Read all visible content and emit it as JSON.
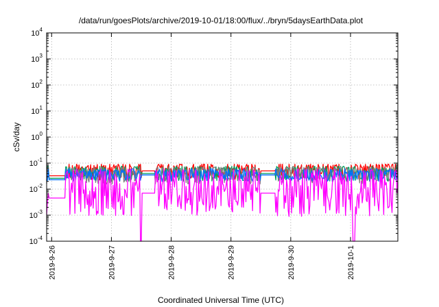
{
  "chart_data": {
    "type": "line",
    "title": "/data/run/goesPlots/archive/2019-10-01/18:00/flux/../bryn/5daysEarthData.plot",
    "xlabel": "Coordinated Universal Time (UTC)",
    "ylabel": "cSv/day",
    "yscale": "log",
    "ylim": [
      0.0001,
      10000
    ],
    "xlim": [
      "2019-09-25T22:00",
      "2019-10-01T19:00"
    ],
    "y_ticks": [
      {
        "value": 0.0001,
        "base": "10",
        "exp": "-4"
      },
      {
        "value": 0.001,
        "base": "10",
        "exp": "-3"
      },
      {
        "value": 0.01,
        "base": "10",
        "exp": "-2"
      },
      {
        "value": 0.1,
        "base": "10",
        "exp": "-1"
      },
      {
        "value": 1,
        "base": "10",
        "exp": "0"
      },
      {
        "value": 10,
        "base": "10",
        "exp": "1"
      },
      {
        "value": 100,
        "base": "10",
        "exp": "2"
      },
      {
        "value": 1000,
        "base": "10",
        "exp": "3"
      },
      {
        "value": 10000,
        "base": "10",
        "exp": "4"
      }
    ],
    "x_ticks": [
      "2019-9-26",
      "2019-9-27",
      "2019-9-28",
      "2019-9-29",
      "2019-9-30",
      "2019-10-1"
    ],
    "grid": true,
    "legend": "none",
    "series": [
      {
        "color": "#ff0000",
        "level": 0.05,
        "spread": 0.35,
        "spike_max": 0.09,
        "dips": []
      },
      {
        "color": "#00a060",
        "level": 0.04,
        "spread": 0.3,
        "spike_max": 0.075,
        "dips": []
      },
      {
        "color": "#7f7f7f",
        "level": 0.035,
        "spread": 0.35,
        "spike_max": 0.07,
        "dips": []
      },
      {
        "color": "#0070ff",
        "level": 0.035,
        "spread": 0.25,
        "spike_max": 0.06,
        "dips": []
      },
      {
        "color": "#ff00ff",
        "level": 0.007,
        "spread": 0.9,
        "spike_max": 0.06,
        "dips": [
          [
            "2019-09-27T11:30",
            "2019-09-27T12:10"
          ],
          [
            "2019-10-01T01:00",
            "2019-10-01T01:40"
          ]
        ]
      }
    ],
    "gaps": [
      {
        "from": "2019-09-25T23:00",
        "to": "2019-09-26T05:30",
        "level_factor": 0.65
      },
      {
        "from": "2019-09-27T12:10",
        "to": "2019-09-27T17:30",
        "level_factor": 1.0
      },
      {
        "from": "2019-09-29T12:00",
        "to": "2019-09-29T17:40",
        "level_factor": 1.0
      }
    ]
  }
}
